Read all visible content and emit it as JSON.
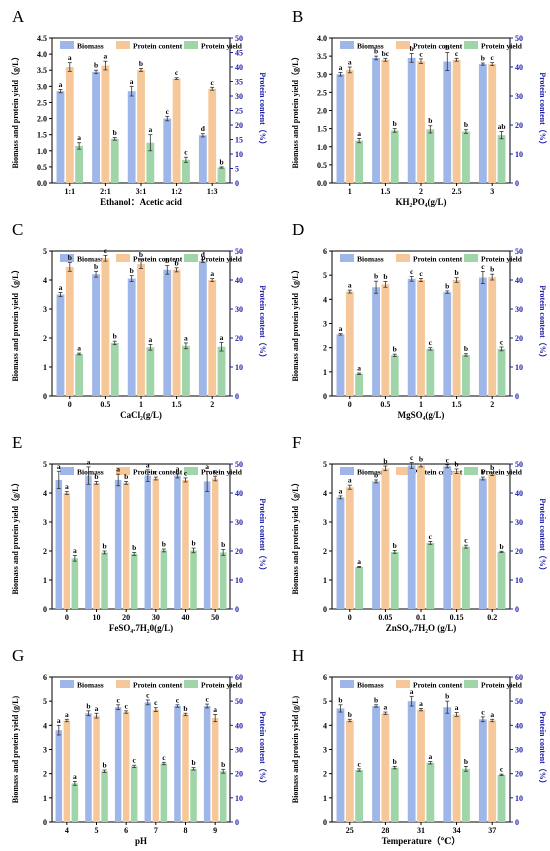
{
  "figure": {
    "colors": {
      "biomass": "#9FB6E8",
      "protein_content": "#F6C899",
      "protein_yield": "#9FD5A8",
      "left_axis": "#000000",
      "right_axis": "#1B1BA8",
      "error_bar": "#333333"
    }
  },
  "chart_data": [
    {
      "panel": "A",
      "type": "bar",
      "xlabel": "Ethanol：Acetic acid",
      "ylabel": "Biomass and protein yield（g/L）",
      "y2label": "Protein content（%）",
      "ylim": [
        0,
        4.5
      ],
      "yticks": [
        0,
        0.5,
        1.0,
        1.5,
        2.0,
        2.5,
        3.0,
        3.5,
        4.0,
        4.5
      ],
      "y2lim": [
        0,
        50
      ],
      "y2ticks": [
        0,
        5,
        10,
        15,
        20,
        25,
        30,
        35,
        40,
        45,
        50
      ],
      "ytick_labels": [
        "0.0",
        "0.5",
        "1.0",
        "1.5",
        "2.0",
        "2.5",
        "3.0",
        "3.5",
        "4.0",
        "4.5"
      ],
      "categories": [
        "1:1",
        "2:1",
        "3:1",
        "1:2",
        "1:3"
      ],
      "legend": [
        "Biomass",
        "Protein content",
        "Protein yield"
      ],
      "series": [
        {
          "name": "Biomass",
          "axis": "left",
          "values": [
            2.85,
            3.45,
            2.85,
            2.0,
            1.48
          ],
          "errors": [
            0.05,
            0.05,
            0.15,
            0.07,
            0.05
          ],
          "letters": [
            "a",
            "b",
            "a",
            "c",
            "d"
          ]
        },
        {
          "name": "Protein content",
          "axis": "right",
          "values": [
            40,
            40.5,
            39,
            36,
            32.5
          ],
          "errors": [
            1.5,
            1.5,
            0.5,
            0.3,
            0.5
          ],
          "letters": [
            "a",
            "a",
            "b",
            "c",
            "c"
          ]
        },
        {
          "name": "Protein yield",
          "axis": "left",
          "values": [
            1.15,
            1.37,
            1.25,
            0.72,
            0.48
          ],
          "errors": [
            0.1,
            0.04,
            0.25,
            0.08,
            0.02
          ],
          "letters": [
            "a",
            "b",
            "a",
            "c",
            "b"
          ]
        }
      ]
    },
    {
      "panel": "B",
      "type": "bar",
      "xlabel": "KH₂PO₄(g/L)",
      "ylabel": "Biomass and protein yield（g/L）",
      "y2label": "Protein content（%）",
      "ylim": [
        0,
        4.0
      ],
      "yticks": [
        0,
        0.5,
        1.0,
        1.5,
        2.0,
        2.5,
        3.0,
        3.5,
        4.0
      ],
      "y2lim": [
        0,
        50
      ],
      "y2ticks": [
        0,
        10,
        20,
        30,
        40,
        50
      ],
      "ytick_labels": [
        "0.0",
        "0.5",
        "1.0",
        "1.5",
        "2.0",
        "2.5",
        "3.0",
        "3.5",
        "4.0"
      ],
      "categories": [
        "1",
        "1.5",
        "2",
        "2.5",
        "3"
      ],
      "legend": [
        "Biomass",
        "Protein content",
        "Protein yield"
      ],
      "series": [
        {
          "name": "Biomass",
          "axis": "left",
          "values": [
            3.0,
            3.45,
            3.45,
            3.35,
            3.28
          ],
          "errors": [
            0.05,
            0.05,
            0.12,
            0.25,
            0.03
          ],
          "letters": [
            "a",
            "b",
            "b",
            "b",
            "b"
          ]
        },
        {
          "name": "Protein content",
          "axis": "right",
          "values": [
            39,
            42.5,
            42,
            42.5,
            41
          ],
          "errors": [
            1.0,
            0.5,
            0.8,
            0.5,
            0.5
          ],
          "letters": [
            "a",
            "bc",
            "c",
            "c",
            "c"
          ]
        },
        {
          "name": "Protein yield",
          "axis": "left",
          "values": [
            1.17,
            1.45,
            1.48,
            1.42,
            1.32
          ],
          "errors": [
            0.06,
            0.05,
            0.1,
            0.05,
            0.1
          ],
          "letters": [
            "a",
            "b",
            "b",
            "b",
            "ab"
          ]
        }
      ]
    },
    {
      "panel": "C",
      "type": "bar",
      "xlabel": "CaCl₂(g/L)",
      "ylabel": "Biomass and protein yield（g/L）",
      "y2label": "Protein content（%）",
      "ylim": [
        0,
        5
      ],
      "yticks": [
        0,
        1,
        2,
        3,
        4,
        5
      ],
      "y2lim": [
        0,
        50
      ],
      "y2ticks": [
        0,
        10,
        20,
        30,
        40,
        50
      ],
      "ytick_labels": [
        "0",
        "1",
        "2",
        "3",
        "4",
        "5"
      ],
      "categories": [
        "0",
        "0.5",
        "1",
        "1.5",
        "2"
      ],
      "legend": [
        "Biomass",
        "Protein content",
        "Protein yield"
      ],
      "series": [
        {
          "name": "Biomass",
          "axis": "left",
          "values": [
            3.5,
            4.2,
            4.05,
            4.35,
            4.65
          ],
          "errors": [
            0.07,
            0.1,
            0.1,
            0.15,
            0.05
          ],
          "letters": [
            "a",
            "b",
            "b",
            "b",
            "d"
          ]
        },
        {
          "name": "Protein content",
          "axis": "right",
          "values": [
            44.5,
            47.5,
            45.5,
            43.5,
            40
          ],
          "errors": [
            1.5,
            1.0,
            1.5,
            0.7,
            0.5
          ],
          "letters": [
            "b",
            "c",
            "b",
            "b",
            "a"
          ]
        },
        {
          "name": "Protein yield",
          "axis": "left",
          "values": [
            1.45,
            1.83,
            1.68,
            1.73,
            1.7
          ],
          "errors": [
            0.03,
            0.06,
            0.1,
            0.1,
            0.15
          ],
          "letters": [
            "a",
            "b",
            "a",
            "a",
            "a"
          ]
        }
      ]
    },
    {
      "panel": "D",
      "type": "bar",
      "xlabel": "MgSO₄(g/L)",
      "ylabel": "Biomass and protein yield（g/L）",
      "y2label": "Protein content（%）",
      "ylim": [
        0,
        6
      ],
      "yticks": [
        0,
        1,
        2,
        3,
        4,
        5,
        6
      ],
      "y2lim": [
        0,
        50
      ],
      "y2ticks": [
        0,
        10,
        20,
        30,
        40,
        50
      ],
      "ytick_labels": [
        "0",
        "1",
        "2",
        "3",
        "4",
        "5",
        "6"
      ],
      "categories": [
        "0",
        "0.5",
        "1",
        "1.5",
        "2"
      ],
      "legend": [
        "Biomass",
        "Protein content",
        "Protein yield"
      ],
      "series": [
        {
          "name": "Biomass",
          "axis": "left",
          "values": [
            2.55,
            4.5,
            4.85,
            4.3,
            4.9
          ],
          "errors": [
            0.03,
            0.25,
            0.1,
            0.05,
            0.25
          ],
          "letters": [
            "a",
            "b",
            "c",
            "b",
            "c"
          ]
        },
        {
          "name": "Protein content",
          "axis": "right",
          "values": [
            36,
            38.5,
            40,
            40,
            41
          ],
          "errors": [
            0.5,
            1.0,
            0.5,
            0.8,
            1.0
          ],
          "letters": [
            "a",
            "b",
            "c",
            "b",
            "b"
          ]
        },
        {
          "name": "Protein yield",
          "axis": "left",
          "values": [
            0.92,
            1.68,
            1.95,
            1.7,
            1.95
          ],
          "errors": [
            0.03,
            0.05,
            0.05,
            0.05,
            0.08
          ],
          "letters": [
            "a",
            "b",
            "c",
            "b",
            "c"
          ]
        }
      ]
    },
    {
      "panel": "E",
      "type": "bar",
      "xlabel": "FeSO₄.7H₂0(g/L)",
      "ylabel": "Biomass and protein yield（g/L）",
      "y2label": "Protein content（%）",
      "ylim": [
        0,
        5
      ],
      "yticks": [
        0,
        1,
        2,
        3,
        4,
        5
      ],
      "y2lim": [
        0,
        50
      ],
      "y2ticks": [
        0,
        10,
        20,
        30,
        40,
        50
      ],
      "ytick_labels": [
        "0",
        "1",
        "2",
        "3",
        "4",
        "5"
      ],
      "categories": [
        "0",
        "10",
        "20",
        "30",
        "40",
        "50"
      ],
      "legend": [
        "Biomass",
        "Protein content",
        "Protein yield"
      ],
      "series": [
        {
          "name": "Biomass",
          "axis": "left",
          "values": [
            4.45,
            4.6,
            4.45,
            4.6,
            4.6,
            4.4
          ],
          "errors": [
            0.3,
            0.3,
            0.2,
            0.2,
            0.08,
            0.35
          ],
          "letters": [
            "a",
            "a",
            "a",
            "a",
            "a",
            "a"
          ]
        },
        {
          "name": "Protein content",
          "axis": "right",
          "values": [
            40,
            43.5,
            43.5,
            45,
            44.5,
            45
          ],
          "errors": [
            0.5,
            0.5,
            0.5,
            0.5,
            0.7,
            0.8
          ],
          "letters": [
            "a",
            "b",
            "b",
            "c",
            "c",
            "c"
          ]
        },
        {
          "name": "Protein yield",
          "axis": "left",
          "values": [
            1.75,
            1.95,
            1.9,
            2.02,
            2.02,
            1.95
          ],
          "errors": [
            0.1,
            0.05,
            0.05,
            0.05,
            0.08,
            0.1
          ],
          "letters": [
            "a",
            "b",
            "b",
            "b",
            "b",
            "b"
          ]
        }
      ]
    },
    {
      "panel": "F",
      "type": "bar",
      "xlabel": "ZnSO₄.7H₂O (g/L)",
      "ylabel": "Biomass and protein yield（g/L）",
      "y2label": "Protein content（%）",
      "ylim": [
        0,
        5
      ],
      "yticks": [
        0,
        1,
        2,
        3,
        4,
        5
      ],
      "y2lim": [
        0,
        50
      ],
      "y2ticks": [
        0,
        10,
        20,
        30,
        40,
        50
      ],
      "ytick_labels": [
        "0",
        "1",
        "2",
        "3",
        "4",
        "5"
      ],
      "categories": [
        "0",
        "0.05",
        "0.1",
        "0.15",
        "0.2"
      ],
      "legend": [
        "Biomass",
        "Protein content",
        "Protein yield"
      ],
      "series": [
        {
          "name": "Biomass",
          "axis": "left",
          "values": [
            3.85,
            4.4,
            4.95,
            4.92,
            4.5
          ],
          "errors": [
            0.05,
            0.05,
            0.1,
            0.05,
            0.05
          ],
          "letters": [
            "a",
            "b",
            "c",
            "c",
            "b"
          ]
        },
        {
          "name": "Protein content",
          "axis": "right",
          "values": [
            42,
            48.5,
            49.5,
            47.5,
            46.5
          ],
          "errors": [
            0.7,
            0.8,
            0.5,
            0.8,
            0.5
          ],
          "letters": [
            "a",
            "b",
            "b",
            "b",
            "b"
          ]
        },
        {
          "name": "Protein yield",
          "axis": "left",
          "values": [
            1.45,
            1.97,
            2.28,
            2.15,
            1.97
          ],
          "errors": [
            0.02,
            0.05,
            0.05,
            0.05,
            0.02
          ],
          "letters": [
            "a",
            "b",
            "c",
            "c",
            "b"
          ]
        }
      ]
    },
    {
      "panel": "G",
      "type": "bar",
      "xlabel": "pH",
      "ylabel": "Biomass and protein yield (g/L)",
      "y2label": "Protein content（%）",
      "ylim": [
        0,
        6
      ],
      "yticks": [
        0,
        1,
        2,
        3,
        4,
        5,
        6
      ],
      "y2lim": [
        0,
        60
      ],
      "y2ticks": [
        0,
        10,
        20,
        30,
        40,
        50,
        60
      ],
      "ytick_labels": [
        "0",
        "1",
        "2",
        "3",
        "4",
        "5",
        "6"
      ],
      "categories": [
        "4",
        "5",
        "6",
        "7",
        "8",
        "9"
      ],
      "legend": [
        "Biomass",
        "Protein content",
        "Protein yield"
      ],
      "series": [
        {
          "name": "Biomass",
          "axis": "left",
          "values": [
            3.8,
            4.5,
            4.75,
            4.95,
            4.8,
            4.8
          ],
          "errors": [
            0.2,
            0.1,
            0.1,
            0.1,
            0.05,
            0.08
          ],
          "letters": [
            "a",
            "b",
            "c",
            "c",
            "c",
            "c"
          ]
        },
        {
          "name": "Protein content",
          "axis": "right",
          "values": [
            42,
            44,
            45.5,
            46.5,
            44.5,
            43
          ],
          "errors": [
            0.5,
            1.0,
            0.5,
            0.8,
            0.5,
            1.5
          ],
          "letters": [
            "a",
            "a",
            "c",
            "c",
            "b",
            "a"
          ]
        },
        {
          "name": "Protein yield",
          "axis": "left",
          "values": [
            1.6,
            2.1,
            2.3,
            2.42,
            2.2,
            2.1
          ],
          "errors": [
            0.08,
            0.05,
            0.05,
            0.05,
            0.05,
            0.08
          ],
          "letters": [
            "a",
            "b",
            "c",
            "c",
            "b",
            "b"
          ]
        }
      ]
    },
    {
      "panel": "H",
      "type": "bar",
      "xlabel": "Temperature（℃）",
      "ylabel": "Biomass and protein yield (g/L)",
      "y2label": "Protein content（%）",
      "ylim": [
        0,
        6
      ],
      "yticks": [
        0,
        1,
        2,
        3,
        4,
        5,
        6
      ],
      "y2lim": [
        0,
        60
      ],
      "y2ticks": [
        0,
        10,
        20,
        30,
        40,
        50,
        60
      ],
      "ytick_labels": [
        "0",
        "1",
        "2",
        "3",
        "4",
        "5",
        "6"
      ],
      "categories": [
        "25",
        "28",
        "31",
        "34",
        "37"
      ],
      "legend": [
        "Biomass",
        "Protein content",
        "Protein yield"
      ],
      "series": [
        {
          "name": "Biomass",
          "axis": "left",
          "values": [
            4.7,
            4.8,
            5.0,
            4.75,
            4.25
          ],
          "errors": [
            0.15,
            0.05,
            0.2,
            0.25,
            0.1
          ],
          "letters": [
            "b",
            "b",
            "a",
            "b",
            "c"
          ]
        },
        {
          "name": "Protein content",
          "axis": "right",
          "values": [
            42,
            45,
            46.5,
            44.5,
            42
          ],
          "errors": [
            0.5,
            0.5,
            0.5,
            0.8,
            0.5
          ],
          "letters": [
            "b",
            "a",
            "a",
            "a",
            "a"
          ]
        },
        {
          "name": "Protein yield",
          "axis": "left",
          "values": [
            2.15,
            2.25,
            2.45,
            2.2,
            1.95
          ],
          "errors": [
            0.05,
            0.05,
            0.05,
            0.1,
            0.03
          ],
          "letters": [
            "c",
            "b",
            "a",
            "b",
            "c"
          ]
        }
      ]
    }
  ]
}
